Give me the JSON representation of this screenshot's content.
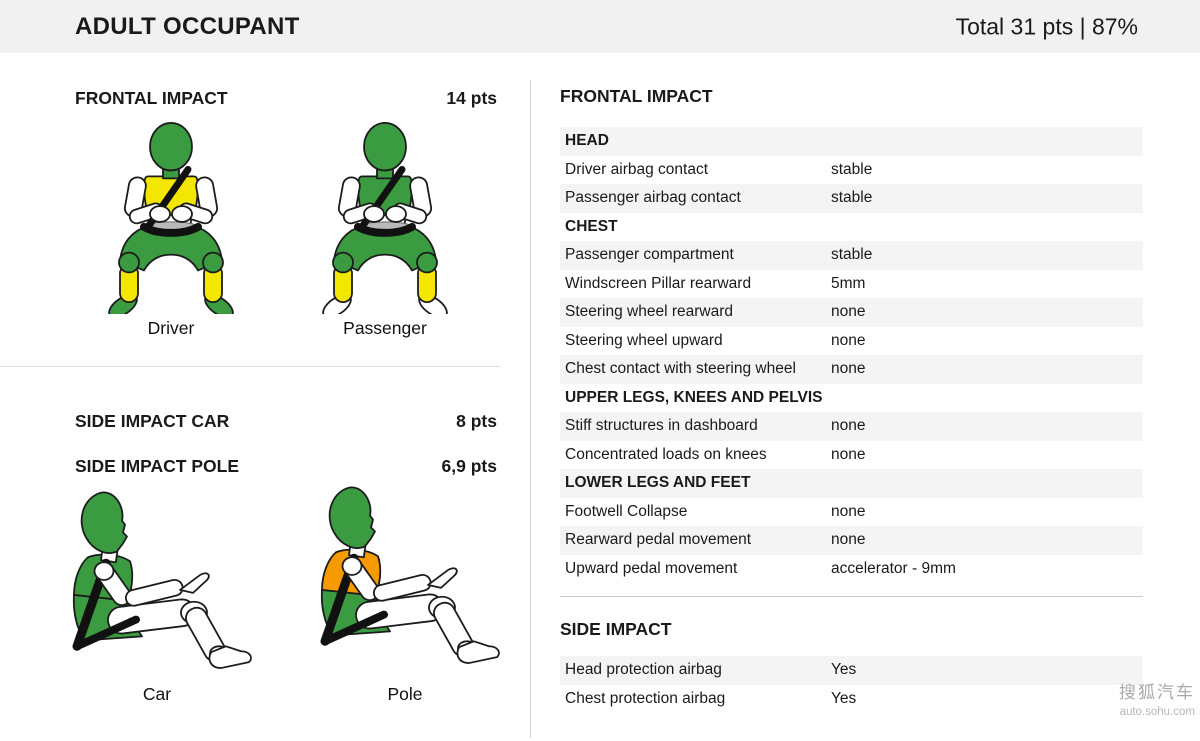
{
  "header": {
    "title": "ADULT OCCUPANT",
    "total": "Total 31 pts | 87%"
  },
  "palette": {
    "green": "#3a9b40",
    "yellow": "#f3e600",
    "orange": "#f59b00",
    "white": "#ffffff",
    "stripe": "#f4f4f4",
    "header_bg": "#f1f1f1",
    "belt": "#111111",
    "outline": "#1c1c1c"
  },
  "left_panel": {
    "frontal": {
      "title": "FRONTAL IMPACT",
      "points": "14 pts",
      "figures": [
        {
          "label": "Driver",
          "view": "front",
          "segments": {
            "head": "green",
            "chest": "yellow",
            "abdomen": "white",
            "arms": "white",
            "pelvis": "green",
            "knees": "green",
            "lower_legs": "yellow",
            "feet": "green"
          }
        },
        {
          "label": "Passenger",
          "view": "front",
          "segments": {
            "head": "green",
            "chest": "green",
            "abdomen": "white",
            "arms": "white",
            "pelvis": "green",
            "knees": "green",
            "lower_legs": "yellow",
            "feet": "white"
          }
        }
      ]
    },
    "side": {
      "car_title": "SIDE IMPACT CAR",
      "car_points": "8 pts",
      "pole_title": "SIDE IMPACT POLE",
      "pole_points": "6,9 pts",
      "figures": [
        {
          "label": "Car",
          "view": "side",
          "segments": {
            "head": "green",
            "chest": "green",
            "lower_torso": "green",
            "limbs": "white"
          }
        },
        {
          "label": "Pole",
          "view": "side",
          "segments": {
            "head": "green",
            "chest": "orange",
            "lower_torso": "green",
            "limbs": "white"
          }
        }
      ]
    }
  },
  "details": {
    "frontal_title": "FRONTAL IMPACT",
    "frontal_rows": [
      {
        "section": "HEAD"
      },
      {
        "label": "Driver airbag contact",
        "value": "stable"
      },
      {
        "label": "Passenger airbag contact",
        "value": "stable"
      },
      {
        "section": "CHEST"
      },
      {
        "label": "Passenger compartment",
        "value": "stable"
      },
      {
        "label": "Windscreen Pillar rearward",
        "value": "5mm"
      },
      {
        "label": "Steering wheel rearward",
        "value": "none"
      },
      {
        "label": "Steering wheel upward",
        "value": "none"
      },
      {
        "label": "Chest contact with steering wheel",
        "value": "none"
      },
      {
        "section": "UPPER LEGS, KNEES AND PELVIS"
      },
      {
        "label": "Stiff structures in dashboard",
        "value": "none"
      },
      {
        "label": "Concentrated loads on knees",
        "value": "none"
      },
      {
        "section": "LOWER LEGS AND FEET"
      },
      {
        "label": "Footwell Collapse",
        "value": "none"
      },
      {
        "label": "Rearward pedal movement",
        "value": "none"
      },
      {
        "label": "Upward pedal movement",
        "value": "accelerator - 9mm"
      }
    ],
    "side_title": "SIDE IMPACT",
    "side_rows": [
      {
        "label": "Head protection airbag",
        "value": "Yes"
      },
      {
        "label": "Chest protection airbag",
        "value": "Yes"
      }
    ]
  },
  "watermark": {
    "line1": "搜狐汽车",
    "line2": "auto.sohu.com"
  }
}
